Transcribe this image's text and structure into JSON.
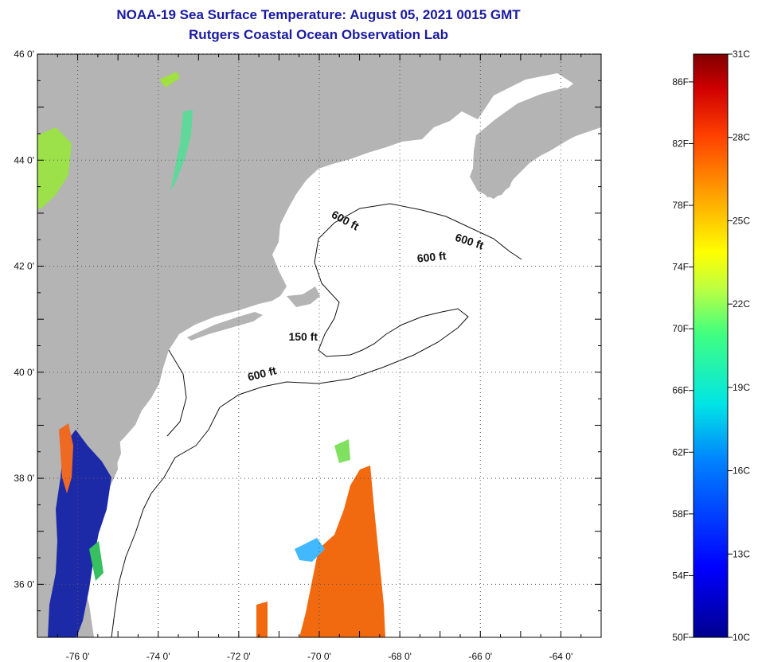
{
  "title": "NOAA-19 Sea Surface Temperature:  August 05, 2021 0015 GMT",
  "subtitle": "Rutgers Coastal Ocean Observation Lab",
  "map": {
    "lon_range": [
      -77,
      -63
    ],
    "lat_range": [
      35,
      46
    ],
    "lon_ticks": [
      {
        "value": -76,
        "label": "-76 0'"
      },
      {
        "value": -74,
        "label": "-74 0'"
      },
      {
        "value": -72,
        "label": "-72 0'"
      },
      {
        "value": -70,
        "label": "-70 0'"
      },
      {
        "value": -68,
        "label": "-68 0'"
      },
      {
        "value": -66,
        "label": "-66 0'"
      },
      {
        "value": -64,
        "label": "-64 0'"
      }
    ],
    "lat_ticks": [
      {
        "value": 46,
        "label": "46 0'"
      },
      {
        "value": 44,
        "label": "44 0'"
      },
      {
        "value": 42,
        "label": "42 0'"
      },
      {
        "value": 40,
        "label": "40 0'"
      },
      {
        "value": 38,
        "label": "38 0'"
      },
      {
        "value": 36,
        "label": "36 0'"
      }
    ],
    "contour_labels": [
      {
        "text": "600 ft",
        "lon": -69.4,
        "lat": 42.8
      },
      {
        "text": "600 ft",
        "lon": -66.3,
        "lat": 42.4
      },
      {
        "text": "600 ft",
        "lon": -67.2,
        "lat": 42.1
      },
      {
        "text": "150 ft",
        "lon": -70.4,
        "lat": 40.6
      },
      {
        "text": "600 ft",
        "lon": -71.4,
        "lat": 39.9
      }
    ],
    "colors": {
      "land": "#b4b4b4",
      "ocean": "#ffffff",
      "warm_sst": "#f26a10",
      "cold_sst": "#1c2aa8",
      "title": "#1b1ba0"
    }
  },
  "colorbar": {
    "fahrenheit_labels": [
      "86F",
      "82F",
      "78F",
      "74F",
      "70F",
      "66F",
      "62F",
      "58F",
      "54F",
      "50F"
    ],
    "celsius_labels": [
      "31C",
      "28C",
      "25C",
      "22C",
      "19C",
      "16C",
      "13C",
      "10C"
    ],
    "range_c": [
      10,
      31
    ]
  }
}
